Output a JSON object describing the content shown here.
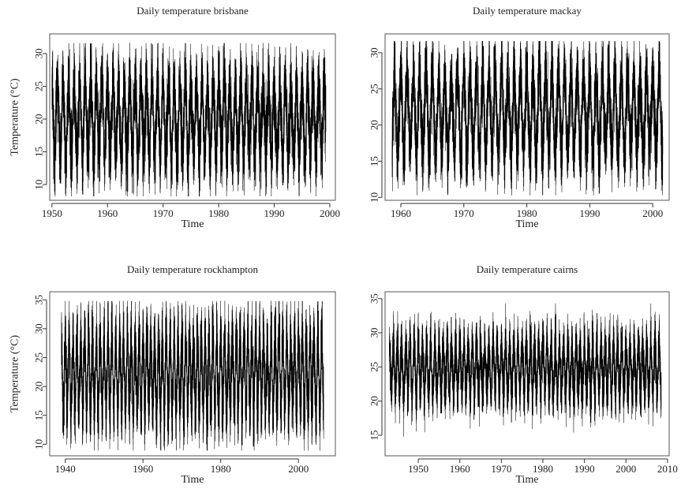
{
  "chart_data": [
    {
      "type": "line",
      "title": "Daily temperature brisbane",
      "xlabel": "Time",
      "ylabel": "Temperature (°C)",
      "xlim": [
        1949.6,
        2001.0
      ],
      "ylim": [
        7.6,
        33.0
      ],
      "xticks": [
        1950,
        1960,
        1970,
        1980,
        1990,
        2000
      ],
      "yticks": [
        10,
        15,
        20,
        25,
        30
      ],
      "grid": false,
      "series": [
        {
          "data_start_year": 1950.0,
          "data_end_year": 1999.3,
          "mean": 20.0,
          "seasonal_amplitude": 5.6,
          "daily_variability": 2.2,
          "min": 8.2,
          "max": 31.6
        }
      ]
    },
    {
      "type": "line",
      "title": "Daily temperature mackay",
      "xlabel": "Time",
      "ylabel": "",
      "xlim": [
        1957.5,
        2002.6
      ],
      "ylim": [
        9.6,
        32.6
      ],
      "xticks": [
        1960,
        1970,
        1980,
        1990,
        2000
      ],
      "yticks": [
        10,
        15,
        20,
        25,
        30
      ],
      "grid": false,
      "series": [
        {
          "data_start_year": 1958.6,
          "data_end_year": 2001.6,
          "mean": 21.6,
          "seasonal_amplitude": 5.5,
          "daily_variability": 2.0,
          "min": 10.3,
          "max": 31.6
        }
      ]
    },
    {
      "type": "line",
      "title": "Daily temperature rockhampton",
      "xlabel": "Time",
      "ylabel": "Temperature (°C)",
      "xlim": [
        1936.0,
        2009.5
      ],
      "ylim": [
        8.0,
        36.4
      ],
      "xticks": [
        1940,
        1960,
        1980,
        2000
      ],
      "yticks": [
        10,
        15,
        20,
        25,
        30,
        35
      ],
      "grid": false,
      "series": [
        {
          "data_start_year": 1939.0,
          "data_end_year": 2006.5,
          "mean": 22.3,
          "seasonal_amplitude": 6.5,
          "daily_variability": 2.3,
          "min": 8.9,
          "max": 34.8
        }
      ]
    },
    {
      "type": "line",
      "title": "Daily temperature cairns",
      "xlabel": "Time",
      "ylabel": "",
      "xlim": [
        1942.0,
        2010.4
      ],
      "ylim": [
        12.0,
        36.0
      ],
      "xticks": [
        1950,
        1960,
        1970,
        1980,
        1990,
        2000,
        2010
      ],
      "yticks": [
        15,
        20,
        25,
        30,
        35
      ],
      "grid": false,
      "series": [
        {
          "data_start_year": 1943.0,
          "data_end_year": 2008.5,
          "mean": 24.8,
          "seasonal_amplitude": 3.6,
          "daily_variability": 1.4,
          "min": 12.8,
          "max": 34.3
        }
      ]
    }
  ]
}
